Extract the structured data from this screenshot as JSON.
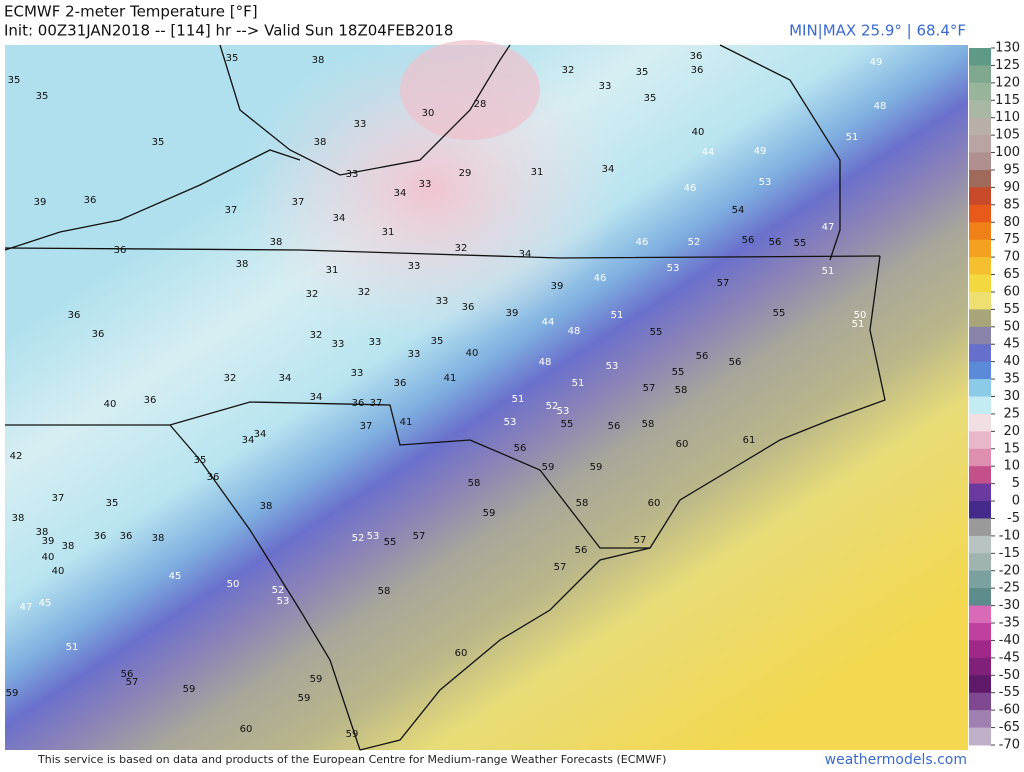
{
  "header": {
    "title": "ECMWF 2-meter Temperature [°F]",
    "subtitle": "Init: 00Z31JAN2018 -- [114] hr --> Valid Sun 18Z04FEB2018",
    "minmax": "MIN|MAX 25.9° | 68.4°F"
  },
  "map": {
    "stations": [
      35,
      38,
      32,
      35,
      36,
      36,
      33,
      35,
      49,
      48,
      35,
      35,
      30,
      28,
      33,
      35,
      38,
      40,
      44,
      49,
      51,
      33,
      33,
      29,
      31,
      34,
      46,
      53,
      39,
      36,
      37,
      37,
      34,
      34,
      54,
      31,
      38,
      32,
      34,
      46,
      52,
      56,
      56,
      55,
      47,
      36,
      38,
      31,
      33,
      53,
      51,
      46,
      39,
      57,
      32,
      32,
      33,
      36,
      39,
      44,
      51,
      48,
      36,
      36,
      32,
      33,
      33,
      35,
      55,
      55,
      50,
      51,
      33,
      40,
      48,
      53,
      55,
      56,
      56,
      32,
      34,
      33,
      41,
      36,
      51,
      57,
      58,
      40,
      36,
      34,
      36,
      37,
      51,
      52,
      53,
      41,
      37,
      53,
      55,
      56,
      58,
      34,
      34,
      60,
      61,
      56,
      42,
      35,
      36,
      59,
      59,
      58,
      37,
      35,
      38,
      59,
      58,
      60,
      38,
      38,
      39,
      38,
      36,
      36,
      38,
      52,
      53,
      55,
      57,
      40,
      40,
      56,
      57,
      45,
      50,
      57,
      52,
      53,
      58,
      47,
      45,
      51,
      60,
      56,
      57,
      59,
      59,
      59,
      59,
      60,
      59
    ]
  },
  "colorbar": {
    "ticks": [
      130,
      125,
      120,
      115,
      110,
      105,
      100,
      95,
      90,
      85,
      80,
      75,
      70,
      65,
      60,
      55,
      50,
      45,
      40,
      35,
      30,
      25,
      20,
      15,
      10,
      5,
      0,
      -5,
      -10,
      -15,
      -20,
      -25,
      -30,
      -35,
      -40,
      -45,
      -50,
      -55,
      -60,
      -65,
      -70
    ],
    "colors": [
      "#5f9a86",
      "#7fa88e",
      "#98b49a",
      "#a9b8a4",
      "#b8b0a8",
      "#b9a3a3",
      "#b08f8f",
      "#a06a5a",
      "#c84a2a",
      "#e85a1a",
      "#f08018",
      "#f4a020",
      "#f5c030",
      "#f4d840",
      "#eee070",
      "#a9a57a",
      "#8b84aa",
      "#6670cc",
      "#5a8ad8",
      "#8ccbe8",
      "#c2ebf2",
      "#f2dfe4",
      "#e8b8ca",
      "#de8eae",
      "#c4508a",
      "#6a3aa0",
      "#442a8a",
      "#9a9a9a",
      "#b8c4c4",
      "#9fb4b0",
      "#7aa0a0",
      "#5d8c8c",
      "#d86ab8",
      "#c040a0",
      "#a02888",
      "#80207a",
      "#60186a",
      "#804890",
      "#a080b0",
      "#c0b0c8"
    ]
  },
  "footer": {
    "credit": "This service is based on data and products of the European Centre for Medium-range Weather Forecasts (ECMWF)",
    "site": "weathermodels.com"
  }
}
